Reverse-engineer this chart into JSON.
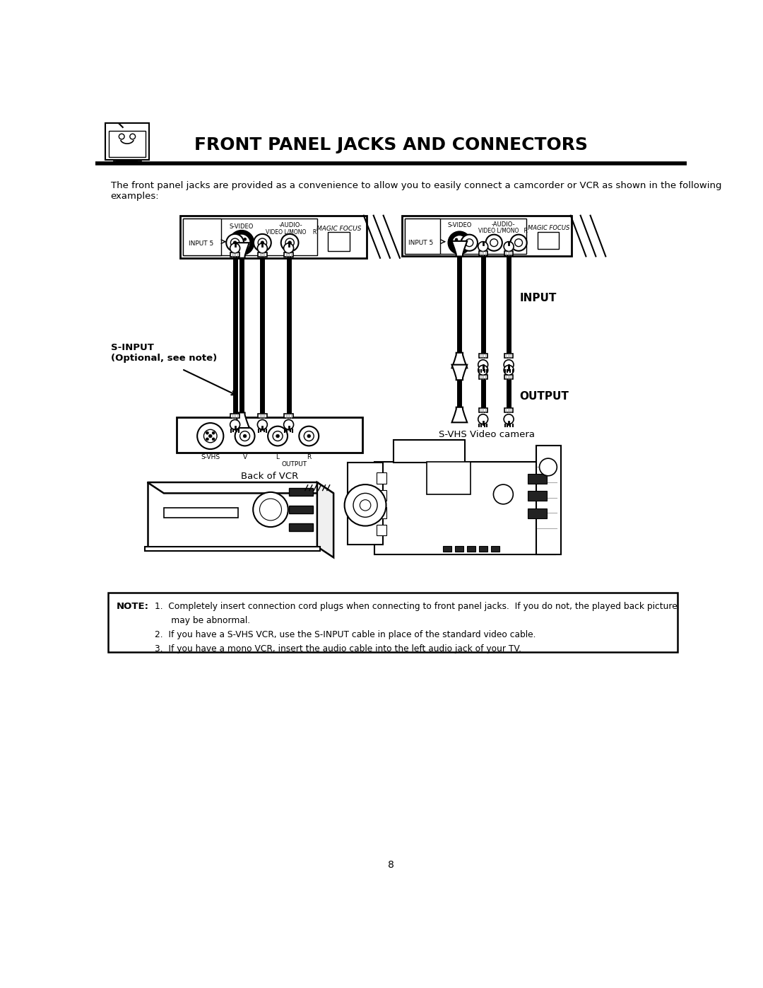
{
  "title": "FRONT PANEL JACKS AND CONNECTORS",
  "page_number": "8",
  "intro_text": "The front panel jacks are provided as a convenience to allow you to easily connect a camcorder or VCR as shown in the following\nexamples:",
  "sinput_label": "S-INPUT\n(Optional, see note)",
  "back_vcr_label": "Back of VCR",
  "input_label": "INPUT",
  "output_label": "OUTPUT",
  "svhs_camera_label": "S-VHS Video camera",
  "note_title": "NOTE:",
  "note_lines": [
    "1.  Completely insert connection cord plugs when connecting to front panel jacks.  If you do not, the played back picture",
    "      may be abnormal.",
    "2.  If you have a S-VHS VCR, use the S-INPUT cable in place of the standard video cable.",
    "3.  If you have a mono VCR, insert the audio cable into the left audio jack of your TV."
  ],
  "bg_color": "#ffffff"
}
